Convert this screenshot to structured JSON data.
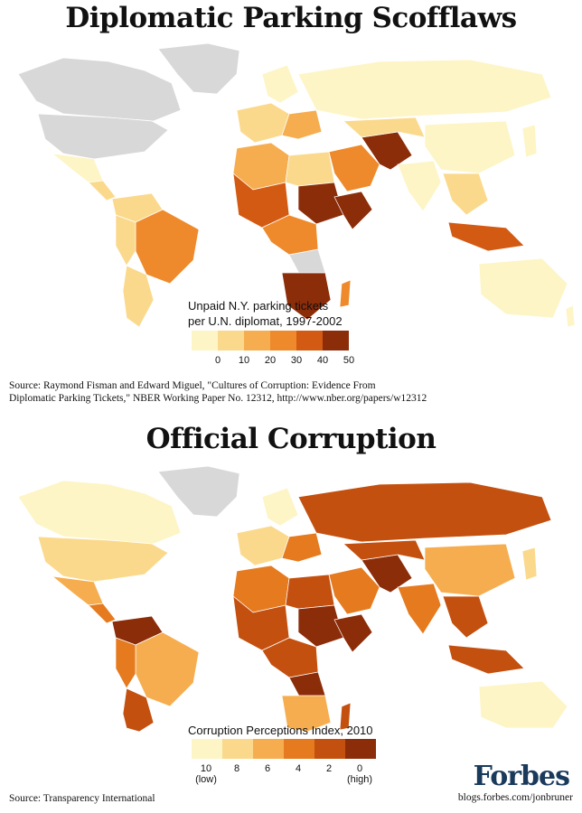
{
  "top_map": {
    "title": "Diplomatic Parking Scofflaws",
    "legend": {
      "title_line1": "Unpaid N.Y. parking tickets",
      "title_line2": "per U.N. diplomat, 1997-2002",
      "ticks": [
        "0",
        "10",
        "20",
        "30",
        "40",
        "50"
      ],
      "colors": [
        "#fdf5c6",
        "#fbd98c",
        "#f6ad50",
        "#ee8a2b",
        "#d35a13",
        "#8c2d0a"
      ]
    },
    "source_line1": "Source: Raymond Fisman and Edward Miguel, \"Cultures of Corruption: Evidence From",
    "source_line2": "Diplomatic Parking Tickets,\" NBER Working Paper No. 12312, http://www.nber.org/papers/w12312"
  },
  "bottom_map": {
    "title": "Official Corruption",
    "legend": {
      "title": "Corruption Perceptions Index, 2010",
      "ticks": [
        "10",
        "8",
        "6",
        "4",
        "2",
        "0"
      ],
      "tick_low": "(low)",
      "tick_high": "(high)",
      "colors": [
        "#fdf5c6",
        "#fbd98c",
        "#f6ad50",
        "#e57a1f",
        "#c4500f",
        "#8c2d0a"
      ]
    },
    "source": "Source: Transparency International"
  },
  "branding": {
    "logo": "Forbes",
    "credit": "blogs.forbes.com/jonbruner"
  },
  "colors": {
    "no_data": "#d8d8d8",
    "border": "#ffffff"
  }
}
